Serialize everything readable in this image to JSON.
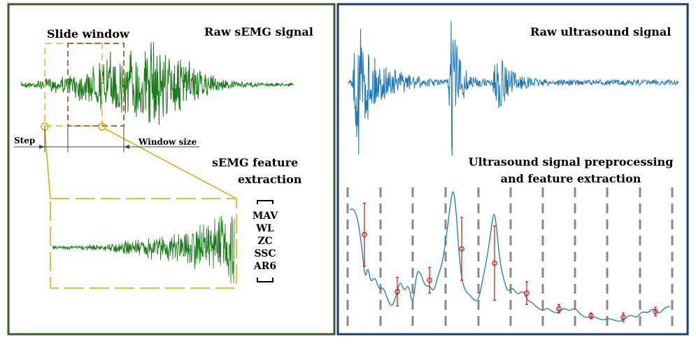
{
  "left_panel": {
    "title": "Raw sEMG  signal",
    "slide_window_label": "Slide window",
    "step_label": "Step",
    "window_size_label": "Window size",
    "feature_title_line1": "sEMG  feature",
    "feature_title_line2": "extraction",
    "features": [
      "MAV",
      "WL",
      "ZC",
      "SSC",
      "AR6"
    ],
    "border_color": "#3d5a2a",
    "signal_color": "#1a7a1a"
  },
  "right_panel": {
    "title": "Raw ultrasound  signal",
    "process_title_line1": "Ultrasound signal preprocessing",
    "process_title_line2": "and feature extraction",
    "border_color": "#1f3a6e",
    "signal_color": "#1f77b4",
    "marker_color": "#cc2222",
    "feature_points": [
      {
        "mean": 0.62,
        "err": 0.22
      },
      {
        "mean": 0.22,
        "err": 0.1
      },
      {
        "mean": 0.3,
        "err": 0.09
      },
      {
        "mean": 0.52,
        "err": 0.22
      },
      {
        "mean": 0.42,
        "err": 0.26
      },
      {
        "mean": 0.21,
        "err": 0.08
      },
      {
        "mean": 0.1,
        "err": 0.03
      },
      {
        "mean": 0.05,
        "err": 0.02
      },
      {
        "mean": 0.04,
        "err": 0.03
      },
      {
        "mean": 0.08,
        "err": 0.03
      }
    ]
  }
}
